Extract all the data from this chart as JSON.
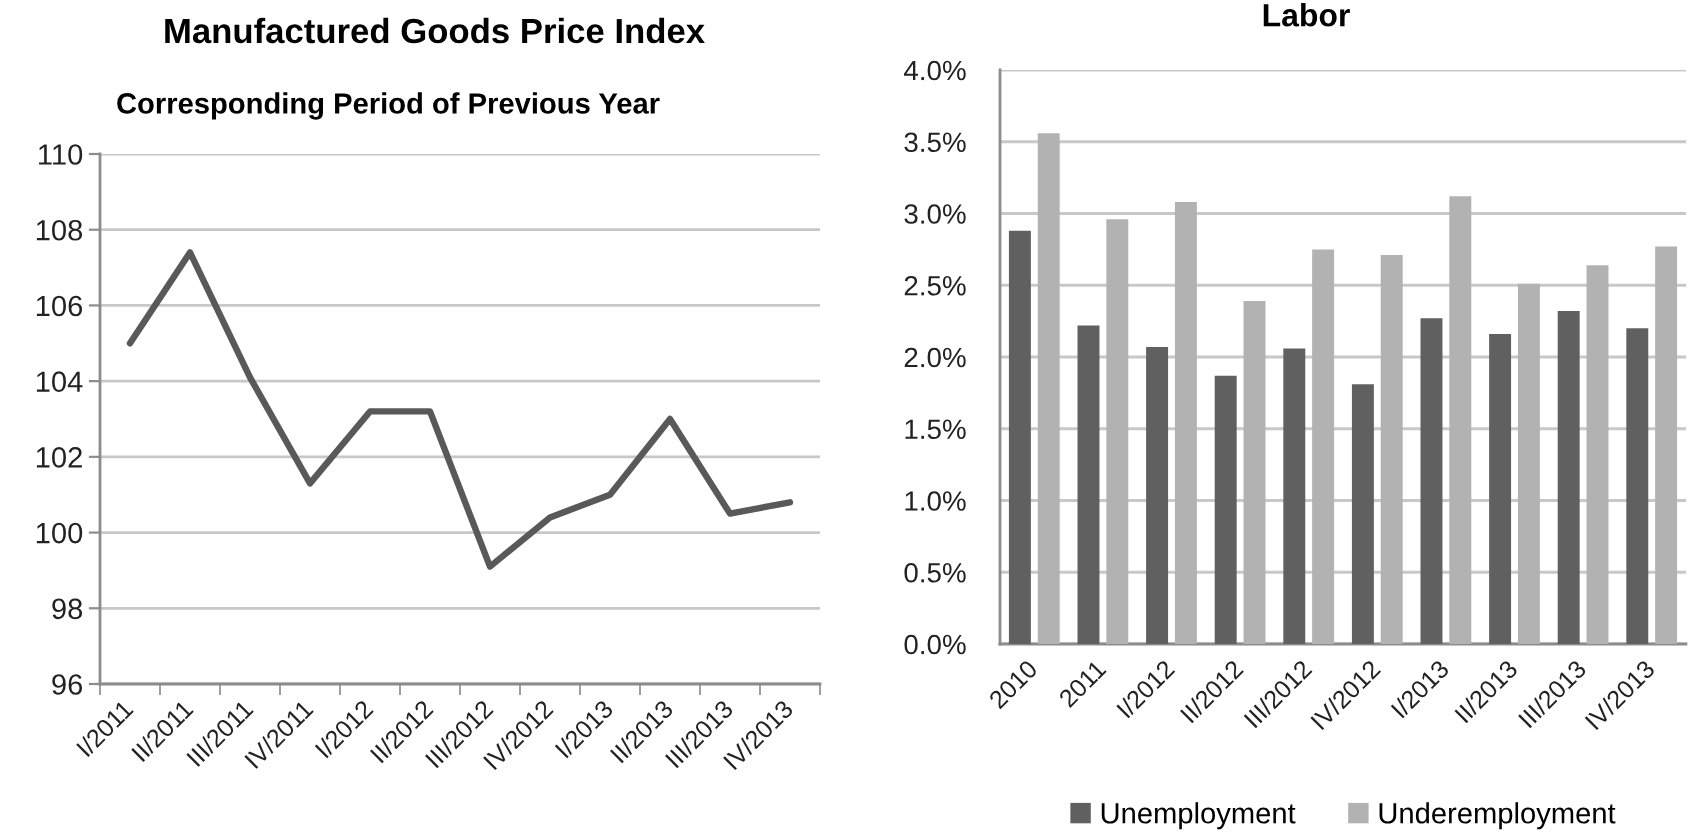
{
  "chart_data": [
    {
      "type": "line",
      "title": "Manufactured Goods Price Index",
      "subtitle": "Corresponding Period of Previous Year",
      "categories": [
        "I/2011",
        "II/2011",
        "III/2011",
        "IV/2011",
        "I/2012",
        "II/2012",
        "III/2012",
        "IV/2012",
        "I/2013",
        "II/2013",
        "III/2013",
        "IV/2013"
      ],
      "series": [
        {
          "color": "#595959",
          "values": [
            105.0,
            107.4,
            104.1,
            101.3,
            103.2,
            103.2,
            99.1,
            100.4,
            101.0,
            103.0,
            100.5,
            100.8
          ]
        }
      ],
      "ylim": [
        96,
        110
      ],
      "yticks": [
        96,
        98,
        100,
        102,
        104,
        106,
        108,
        110
      ],
      "grid": "y"
    },
    {
      "type": "bar",
      "title": "Labor",
      "categories": [
        "2010",
        "2011",
        "I/2012",
        "II/2012",
        "III/2012",
        "IV/2012",
        "I/2013",
        "II/2013",
        "III/2013",
        "IV/2013"
      ],
      "series": [
        {
          "name": "Unemployment",
          "color": "#606060",
          "values": [
            2.88,
            2.22,
            2.07,
            1.87,
            2.06,
            1.81,
            2.27,
            2.16,
            2.32,
            2.2
          ]
        },
        {
          "name": "Underemployment",
          "color": "#b2b2b2",
          "values": [
            3.56,
            2.96,
            3.08,
            2.39,
            2.75,
            2.71,
            3.12,
            2.51,
            2.64,
            2.77
          ]
        }
      ],
      "ylim": [
        0,
        4
      ],
      "yticks": [
        {
          "value": 0,
          "label": "0.0%"
        },
        {
          "value": 0.5,
          "label": "0.5%"
        },
        {
          "value": 1,
          "label": "1.0%"
        },
        {
          "value": 1.5,
          "label": "1.5%"
        },
        {
          "value": 2,
          "label": "2.0%"
        },
        {
          "value": 2.5,
          "label": "2.5%"
        },
        {
          "value": 3,
          "label": "3.0%"
        },
        {
          "value": 3.5,
          "label": "3.5%"
        },
        {
          "value": 4,
          "label": "4.0%"
        }
      ],
      "grid": "y",
      "legend": "bottom"
    }
  ]
}
